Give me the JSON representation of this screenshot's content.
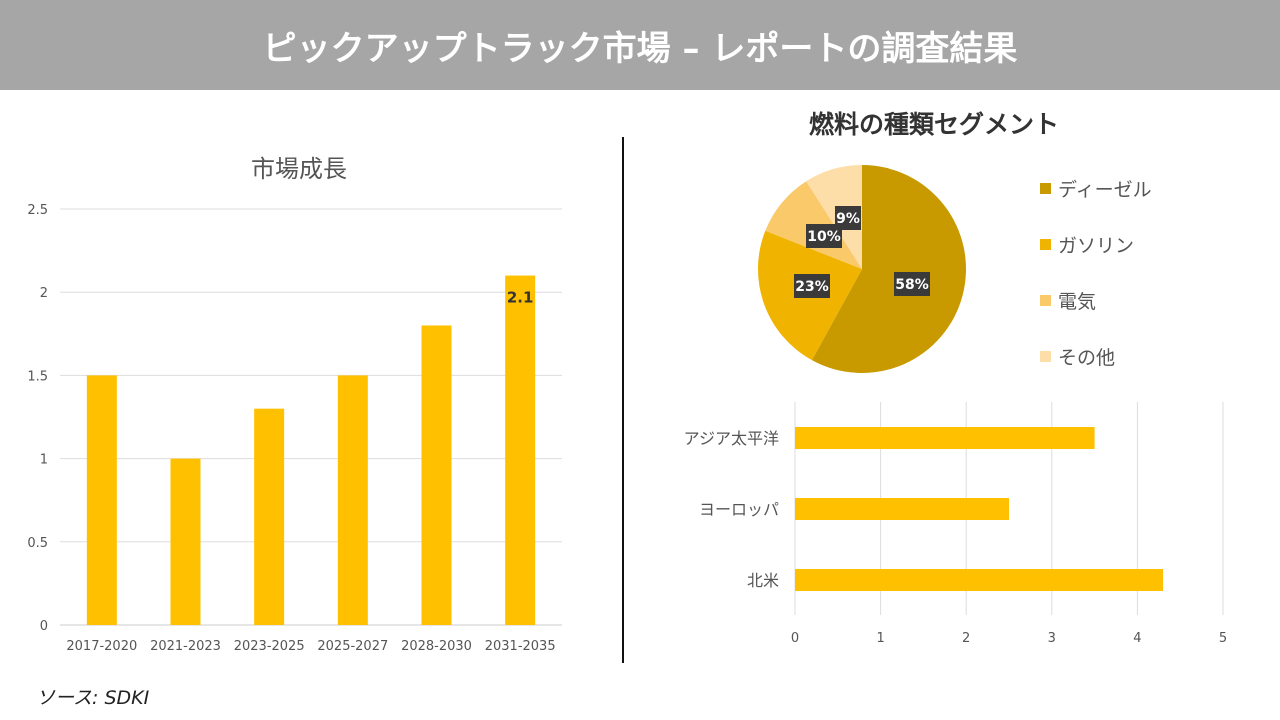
{
  "header": {
    "title": "ピックアップトラック市場 – レポートの調査結果"
  },
  "source": "ソース: SDKI",
  "chart_data": [
    {
      "type": "bar",
      "title": "市場成長",
      "categories": [
        "2017-2020",
        "2021-2023",
        "2023-2025",
        "2025-2027",
        "2028-2030",
        "2031-2035"
      ],
      "values": [
        1.5,
        1.0,
        1.3,
        1.5,
        1.8,
        2.1
      ],
      "ylim": [
        0,
        2.5
      ],
      "yticks": [
        "0",
        "0.5",
        "1",
        "1.5",
        "2",
        "2.5"
      ],
      "data_labels": {
        "5": "2.1"
      },
      "grid": true,
      "color": "#FFC000"
    },
    {
      "type": "pie",
      "title": "燃料の種類セグメント",
      "categories": [
        "ディーゼル",
        "ガソリン",
        "電気",
        "その他"
      ],
      "values": [
        58,
        23,
        10,
        9
      ],
      "labels": [
        "58%",
        "23%",
        "10%",
        "9%"
      ],
      "colors": [
        "#C89A00",
        "#F0B400",
        "#FAC96A",
        "#FDDDA8"
      ],
      "legend": "right"
    },
    {
      "type": "bar",
      "orientation": "horizontal",
      "categories": [
        "アジア太平洋",
        "ヨーロッパ",
        "北米"
      ],
      "values": [
        3.5,
        2.5,
        4.3
      ],
      "xlim": [
        0,
        5
      ],
      "xticks": [
        "0",
        "1",
        "2",
        "3",
        "4",
        "5"
      ],
      "grid": true,
      "color": "#FFC000"
    }
  ]
}
